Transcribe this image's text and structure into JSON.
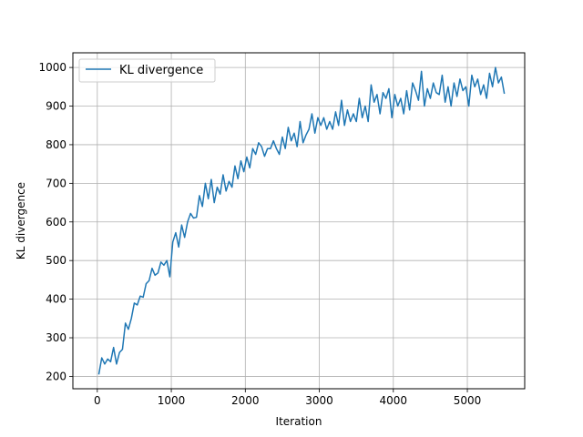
{
  "chart_data": {
    "type": "line",
    "title": "",
    "xlabel": "Iteration",
    "ylabel": "KL divergence",
    "xlim": [
      -330,
      5775
    ],
    "ylim": [
      168,
      1038
    ],
    "xticks": [
      0,
      1000,
      2000,
      3000,
      4000,
      5000
    ],
    "yticks": [
      200,
      300,
      400,
      500,
      600,
      700,
      800,
      900,
      1000
    ],
    "grid": true,
    "legend_position": "top-left",
    "series": [
      {
        "name": "KL divergence",
        "color": "#1f77b4",
        "x": [
          20,
          60,
          100,
          140,
          180,
          220,
          260,
          300,
          340,
          380,
          420,
          460,
          500,
          540,
          580,
          620,
          660,
          700,
          740,
          780,
          820,
          860,
          900,
          940,
          980,
          1020,
          1060,
          1100,
          1140,
          1180,
          1220,
          1260,
          1300,
          1340,
          1380,
          1420,
          1460,
          1500,
          1540,
          1580,
          1620,
          1660,
          1700,
          1740,
          1780,
          1820,
          1860,
          1900,
          1940,
          1980,
          2020,
          2060,
          2100,
          2140,
          2180,
          2220,
          2260,
          2300,
          2340,
          2380,
          2420,
          2460,
          2500,
          2540,
          2580,
          2620,
          2660,
          2700,
          2740,
          2780,
          2820,
          2860,
          2900,
          2940,
          2980,
          3020,
          3060,
          3100,
          3140,
          3180,
          3220,
          3260,
          3300,
          3340,
          3380,
          3420,
          3460,
          3500,
          3540,
          3580,
          3620,
          3660,
          3700,
          3740,
          3780,
          3820,
          3860,
          3900,
          3940,
          3980,
          4020,
          4060,
          4100,
          4140,
          4180,
          4220,
          4260,
          4300,
          4340,
          4380,
          4420,
          4460,
          4500,
          4540,
          4580,
          4620,
          4660,
          4700,
          4740,
          4780,
          4820,
          4860,
          4900,
          4940,
          4980,
          5020,
          5060,
          5100,
          5140,
          5180,
          5220,
          5260,
          5300,
          5340,
          5380,
          5420,
          5460,
          5500
        ],
        "y": [
          205,
          248,
          232,
          245,
          238,
          275,
          232,
          262,
          270,
          338,
          322,
          350,
          390,
          385,
          408,
          405,
          440,
          448,
          480,
          462,
          468,
          496,
          488,
          500,
          458,
          548,
          572,
          535,
          592,
          560,
          600,
          622,
          610,
          612,
          668,
          640,
          700,
          660,
          710,
          650,
          690,
          672,
          722,
          680,
          705,
          690,
          745,
          712,
          758,
          730,
          768,
          740,
          790,
          775,
          805,
          795,
          770,
          790,
          790,
          810,
          790,
          775,
          820,
          790,
          845,
          810,
          830,
          795,
          860,
          805,
          825,
          840,
          880,
          830,
          870,
          850,
          870,
          840,
          860,
          840,
          885,
          850,
          915,
          850,
          890,
          860,
          880,
          860,
          920,
          870,
          900,
          860,
          955,
          910,
          930,
          880,
          935,
          920,
          945,
          870,
          930,
          900,
          920,
          880,
          940,
          890,
          960,
          940,
          915,
          990,
          900,
          945,
          920,
          960,
          935,
          930,
          980,
          910,
          950,
          900,
          960,
          925,
          970,
          940,
          950,
          900,
          980,
          950,
          970,
          930,
          955,
          920,
          985,
          950,
          1000,
          960,
          975,
          932
        ]
      }
    ]
  }
}
